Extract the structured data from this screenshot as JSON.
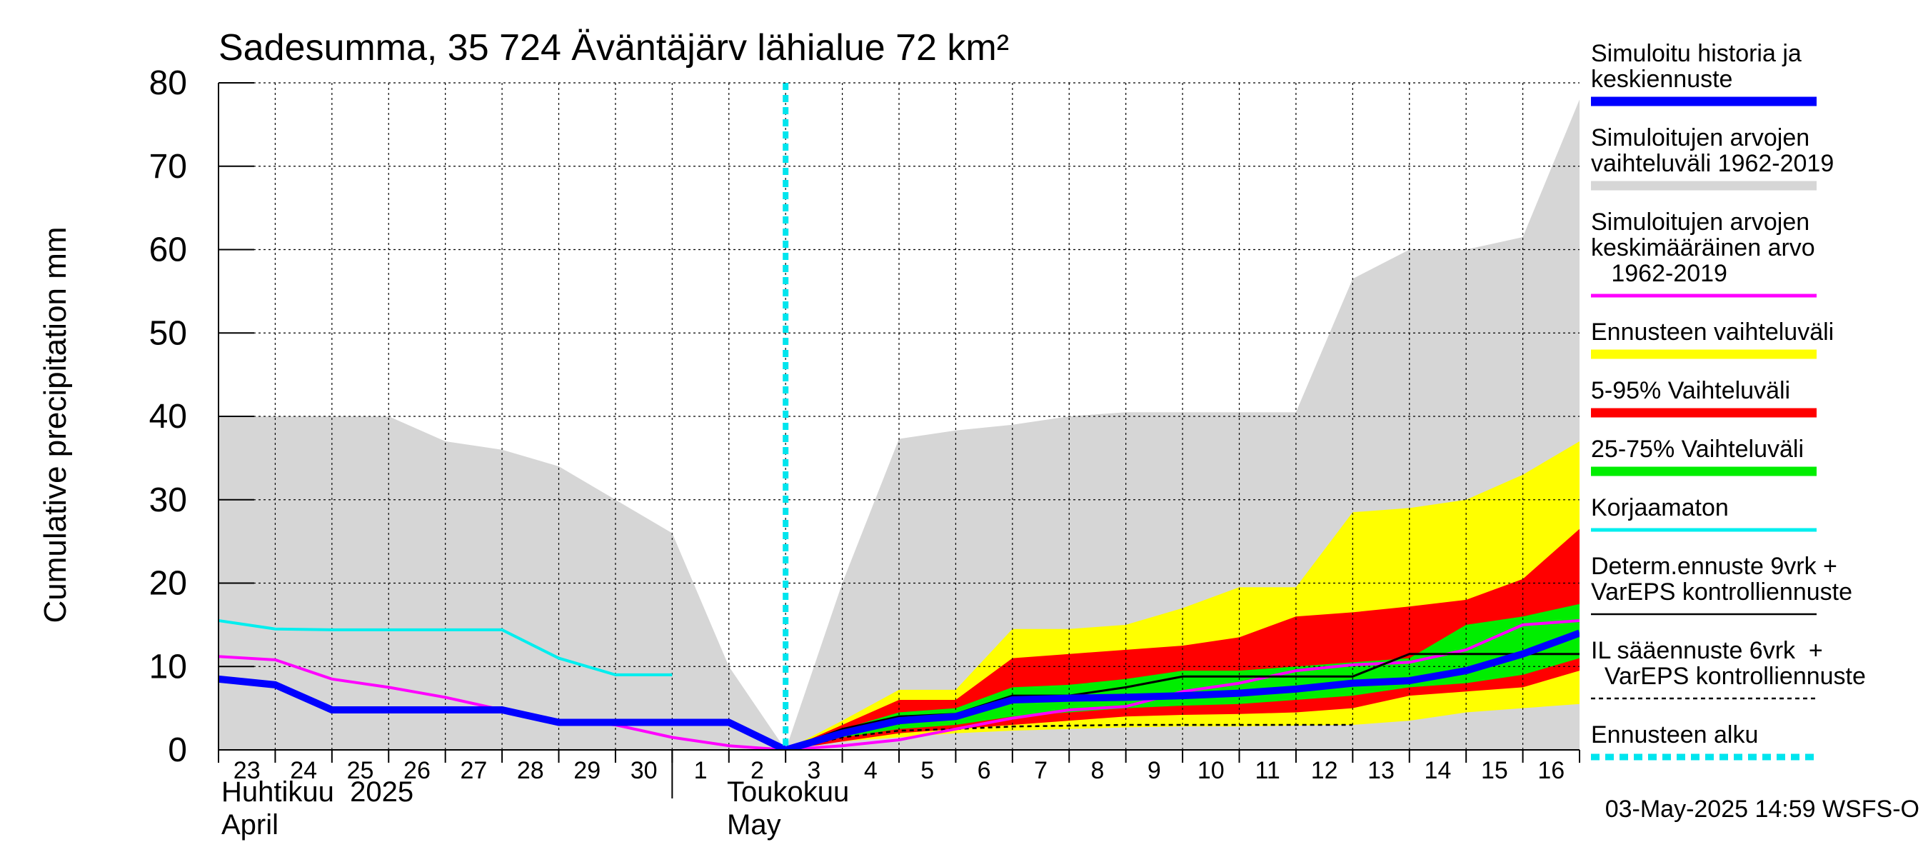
{
  "chart_data": {
    "type": "area",
    "title": "Sadesumma, 35 724 Äväntäjärv lähialue 72 km²",
    "ylabel": "Cumulative precipitation   mm",
    "ylim": [
      0,
      80
    ],
    "yticks": [
      0,
      10,
      20,
      30,
      40,
      50,
      60,
      70,
      80
    ],
    "xlim": [
      "2025-04-23",
      "2025-05-17"
    ],
    "x_tick_labels": [
      "23",
      "24",
      "25",
      "26",
      "27",
      "28",
      "29",
      "30",
      "1",
      "2",
      "3",
      "4",
      "5",
      "6",
      "7",
      "8",
      "9",
      "10",
      "11",
      "12",
      "13",
      "14",
      "15",
      "16"
    ],
    "month_labels": [
      {
        "fi": "Huhtikuu  2025",
        "en": "April"
      },
      {
        "fi": "Toukokuu",
        "en": "May"
      }
    ],
    "forecast_start": "2025-05-03",
    "grid": true,
    "legend_position": "right",
    "timestamp": "03-May-2025 14:59 WSFS-O",
    "colors": {
      "sim_range": "#d6d6d6",
      "ens_range": "#ffff00",
      "p5_95": "#ff0000",
      "p25_75": "#00ee00",
      "sim_history": "#0000ff",
      "sim_mean": "#ff00ff",
      "uncorrected": "#00eeee",
      "determ": "#000000",
      "il": "#000000",
      "forecast_start": "#00e5ee"
    },
    "series": [
      {
        "name": "Simuloitujen arvojen vaihteluväli 1962-2019",
        "kind": "band",
        "x": [
          "2025-04-23",
          "2025-04-24",
          "2025-04-25",
          "2025-04-26",
          "2025-04-27",
          "2025-04-28",
          "2025-04-29",
          "2025-04-30",
          "2025-05-01",
          "2025-05-02",
          "2025-05-03",
          "2025-05-04",
          "2025-05-05",
          "2025-05-06",
          "2025-05-07",
          "2025-05-08",
          "2025-05-09",
          "2025-05-10",
          "2025-05-11",
          "2025-05-12",
          "2025-05-13",
          "2025-05-14",
          "2025-05-15",
          "2025-05-16",
          "2025-05-17"
        ],
        "lower": [
          0,
          0,
          0,
          0,
          0,
          0,
          0,
          0,
          0,
          0,
          0,
          0,
          0,
          0,
          0,
          0,
          0,
          0,
          0,
          0,
          0,
          0,
          0,
          0,
          0
        ],
        "upper": [
          40,
          40,
          40,
          40,
          37,
          36,
          34,
          30,
          26,
          10,
          0,
          20,
          37.3,
          38.3,
          39,
          40,
          40.5,
          40.5,
          40.5,
          40.5,
          56.5,
          60,
          60,
          61.5,
          78
        ]
      },
      {
        "name": "Ennusteen vaihteluväli",
        "kind": "band",
        "x": [
          "2025-05-03",
          "2025-05-04",
          "2025-05-05",
          "2025-05-06",
          "2025-05-07",
          "2025-05-08",
          "2025-05-09",
          "2025-05-10",
          "2025-05-11",
          "2025-05-12",
          "2025-05-13",
          "2025-05-14",
          "2025-05-15",
          "2025-05-16",
          "2025-05-17"
        ],
        "lower": [
          0,
          1,
          1.5,
          2,
          2.3,
          2.5,
          2.7,
          2.8,
          2.8,
          2.9,
          3,
          3.5,
          4.5,
          5,
          5.5
        ],
        "upper": [
          0,
          3.5,
          7.2,
          7.2,
          14.5,
          14.5,
          15,
          17,
          19.5,
          19.5,
          28.5,
          29,
          30,
          33,
          37
        ]
      },
      {
        "name": "5-95% Vaihteluväli",
        "kind": "band",
        "x": [
          "2025-05-03",
          "2025-05-04",
          "2025-05-05",
          "2025-05-06",
          "2025-05-07",
          "2025-05-08",
          "2025-05-09",
          "2025-05-10",
          "2025-05-11",
          "2025-05-12",
          "2025-05-13",
          "2025-05-14",
          "2025-05-15",
          "2025-05-16",
          "2025-05-17"
        ],
        "lower": [
          0,
          1,
          2,
          2.5,
          3,
          3.5,
          4,
          4.2,
          4.3,
          4.5,
          5,
          6.5,
          7,
          7.5,
          9.5
        ],
        "upper": [
          0,
          3,
          6,
          6,
          11,
          11.5,
          12,
          12.5,
          13.5,
          16,
          16.5,
          17.2,
          18,
          20.5,
          26.5
        ]
      },
      {
        "name": "25-75% Vaihteluväli",
        "kind": "band",
        "x": [
          "2025-05-03",
          "2025-05-04",
          "2025-05-05",
          "2025-05-06",
          "2025-05-07",
          "2025-05-08",
          "2025-05-09",
          "2025-05-10",
          "2025-05-11",
          "2025-05-12",
          "2025-05-13",
          "2025-05-14",
          "2025-05-15",
          "2025-05-16",
          "2025-05-17"
        ],
        "lower": [
          0,
          1.5,
          2.5,
          3,
          4,
          4.5,
          5,
          5.3,
          5.5,
          6,
          6.5,
          7.5,
          8,
          9,
          11
        ],
        "upper": [
          0,
          2.5,
          4.5,
          5,
          7.5,
          7.8,
          8.5,
          9.5,
          9.5,
          10,
          10.5,
          11,
          15,
          16,
          17.5
        ]
      },
      {
        "name": "Simuloitu historia ja keskiennuste",
        "kind": "line",
        "x": [
          "2025-04-23",
          "2025-04-24",
          "2025-04-25",
          "2025-04-26",
          "2025-04-27",
          "2025-04-28",
          "2025-04-29",
          "2025-04-30",
          "2025-05-01",
          "2025-05-02",
          "2025-05-03",
          "2025-05-04",
          "2025-05-05",
          "2025-05-06",
          "2025-05-07",
          "2025-05-08",
          "2025-05-09",
          "2025-05-10",
          "2025-05-11",
          "2025-05-12",
          "2025-05-13",
          "2025-05-14",
          "2025-05-15",
          "2025-05-16",
          "2025-05-17"
        ],
        "y": [
          8.5,
          7.8,
          4.8,
          4.8,
          4.8,
          4.8,
          3.3,
          3.3,
          3.3,
          3.3,
          0,
          2,
          3.5,
          4,
          6,
          6.2,
          6.3,
          6.5,
          6.8,
          7.3,
          8,
          8.3,
          9.5,
          11.5,
          14
        ]
      },
      {
        "name": "Simuloitujen arvojen keskimääräinen arvo 1962-2019",
        "kind": "line",
        "x": [
          "2025-04-23",
          "2025-04-24",
          "2025-04-25",
          "2025-04-26",
          "2025-04-27",
          "2025-04-28",
          "2025-04-29",
          "2025-04-30",
          "2025-05-01",
          "2025-05-02",
          "2025-05-03",
          "2025-05-04",
          "2025-05-05",
          "2025-05-06",
          "2025-05-07",
          "2025-05-08",
          "2025-05-09",
          "2025-05-10",
          "2025-05-11",
          "2025-05-12",
          "2025-05-13",
          "2025-05-14",
          "2025-05-15",
          "2025-05-16",
          "2025-05-17"
        ],
        "y": [
          11.2,
          10.8,
          8.5,
          7.5,
          6.3,
          4.8,
          3.5,
          3,
          1.5,
          0.5,
          0,
          0.5,
          1.2,
          2.5,
          3.8,
          4.8,
          5.2,
          7,
          8,
          9.5,
          10.2,
          10.5,
          12,
          15,
          15.5
        ]
      },
      {
        "name": "Korjaamaton",
        "kind": "line",
        "x": [
          "2025-04-23",
          "2025-04-24",
          "2025-04-25",
          "2025-04-26",
          "2025-04-27",
          "2025-04-28",
          "2025-04-29",
          "2025-04-30",
          "2025-05-01"
        ],
        "y": [
          15.5,
          14.5,
          14.4,
          14.4,
          14.4,
          14.4,
          11,
          9,
          9
        ]
      },
      {
        "name": "Determ.ennuste 9vrk + VarEPS kontrolliennuste",
        "kind": "line",
        "x": [
          "2025-05-03",
          "2025-05-04",
          "2025-05-05",
          "2025-05-06",
          "2025-05-07",
          "2025-05-08",
          "2025-05-09",
          "2025-05-10",
          "2025-05-11",
          "2025-05-12",
          "2025-05-13",
          "2025-05-14",
          "2025-05-15",
          "2025-05-16",
          "2025-05-17"
        ],
        "y": [
          0,
          2.5,
          4,
          4.3,
          6.5,
          6.5,
          7.5,
          8.8,
          8.8,
          8.8,
          8.8,
          11.5,
          11.5,
          11.5,
          11.5
        ]
      },
      {
        "name": "IL sääennuste 6vrk + VarEPS kontrolliennuste",
        "kind": "dashed",
        "x": [
          "2025-05-03",
          "2025-05-04",
          "2025-05-05",
          "2025-05-06",
          "2025-05-07",
          "2025-05-08",
          "2025-05-09",
          "2025-05-10",
          "2025-05-11",
          "2025-05-12",
          "2025-05-13"
        ],
        "y": [
          0,
          1.5,
          2.3,
          2.5,
          2.8,
          2.9,
          3,
          3,
          3,
          3,
          3
        ]
      }
    ],
    "legend": [
      {
        "lines": [
          "Simuloitu historia ja",
          "keskiennuste"
        ],
        "swatch": "thick",
        "color": "#0000ff"
      },
      {
        "lines": [
          "Simuloitujen arvojen",
          "vaihteluväli 1962-2019"
        ],
        "swatch": "thick",
        "color": "#d6d6d6"
      },
      {
        "lines": [
          "Simuloitujen arvojen",
          "keskimääräinen arvo",
          "   1962-2019"
        ],
        "swatch": "thin",
        "color": "#ff00ff"
      },
      {
        "lines": [
          "Ennusteen vaihteluväli"
        ],
        "swatch": "thick",
        "color": "#ffff00"
      },
      {
        "lines": [
          "5-95% Vaihteluväli"
        ],
        "swatch": "thick",
        "color": "#ff0000"
      },
      {
        "lines": [
          "25-75% Vaihteluväli"
        ],
        "swatch": "thick",
        "color": "#00ee00"
      },
      {
        "lines": [
          "Korjaamaton"
        ],
        "swatch": "thin",
        "color": "#00eeee"
      },
      {
        "lines": [
          "Determ.ennuste 9vrk +",
          "VarEPS kontrolliennuste"
        ],
        "swatch": "line",
        "color": "#000000"
      },
      {
        "lines": [
          "IL sääennuste 6vrk  +",
          "  VarEPS kontrolliennuste"
        ],
        "swatch": "dashed",
        "color": "#000000"
      },
      {
        "lines": [
          "Ennusteen alku"
        ],
        "swatch": "dotted",
        "color": "#00e5ee"
      }
    ]
  }
}
